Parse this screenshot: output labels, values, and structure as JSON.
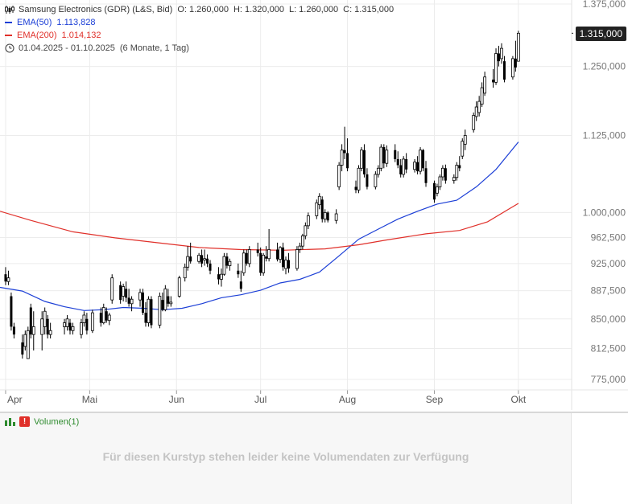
{
  "legend": {
    "instrument": "Samsung Electronics (GDR) (L&S, Bid)",
    "open": "O: 1.260,000",
    "high": "H: 1.320,000",
    "low": "L: 1.260,000",
    "close": "C: 1.315,000",
    "ema50_label": "EMA(50)",
    "ema50_value": "1.113,828",
    "ema200_label": "EMA(200)",
    "ema200_value": "1.014,132",
    "date_range": "01.04.2025 - 01.10.2025",
    "period": "(6 Monate, 1 Tag)"
  },
  "price_tag": "1.315,000",
  "volume": {
    "title": "Volumen(1)",
    "warning_glyph": "!",
    "message": "Für diesen Kurstyp stehen leider keine Volumendaten zur Verfügung"
  },
  "colors": {
    "ema50": "#1c3fd6",
    "ema200": "#e0302a",
    "candle": "#000000",
    "grid": "#ececec"
  },
  "chart_data": {
    "type": "candlestick",
    "title": "Samsung Electronics (GDR) (L&S, Bid)",
    "y_ticks": [
      1375,
      1250,
      1125,
      1000,
      962.5,
      925,
      887.5,
      850,
      812.5,
      775
    ],
    "y_tick_labels": [
      "1.375,000",
      "1.250,000",
      "1.125,000",
      "1.000,000",
      "962,500",
      "925,000",
      "887,500",
      "850,000",
      "812,500",
      "775,000"
    ],
    "y_scale": "log",
    "x_ticks": [
      "2025-04-01",
      "2025-05-01",
      "2025-06-01",
      "2025-07-01",
      "2025-08-01",
      "2025-09-01",
      "2025-10-01"
    ],
    "x_tick_labels": [
      "Apr",
      "Mai",
      "Jun",
      "Jul",
      "Aug",
      "Sep",
      "Okt"
    ],
    "x_range": [
      "2025-03-30",
      "2025-10-20"
    ],
    "last_close": 1315,
    "candles": [
      [
        "2025-04-01",
        910,
        920,
        895,
        900
      ],
      [
        "2025-04-02",
        900,
        915,
        895,
        905
      ],
      [
        "2025-04-03",
        880,
        885,
        835,
        840
      ],
      [
        "2025-04-04",
        840,
        845,
        825,
        830
      ],
      [
        "2025-04-07",
        820,
        830,
        800,
        805
      ],
      [
        "2025-04-08",
        815,
        835,
        810,
        830
      ],
      [
        "2025-04-09",
        800,
        840,
        800,
        835
      ],
      [
        "2025-04-10",
        865,
        870,
        825,
        830
      ],
      [
        "2025-04-11",
        830,
        860,
        810,
        840
      ],
      [
        "2025-04-14",
        830,
        860,
        810,
        850
      ],
      [
        "2025-04-15",
        840,
        865,
        830,
        860
      ],
      [
        "2025-04-16",
        850,
        855,
        825,
        830
      ],
      [
        "2025-04-17",
        830,
        845,
        825,
        835
      ],
      [
        "2025-04-22",
        840,
        850,
        830,
        845
      ],
      [
        "2025-04-23",
        840,
        855,
        835,
        850
      ],
      [
        "2025-04-24",
        845,
        850,
        830,
        835
      ],
      [
        "2025-04-25",
        835,
        845,
        830,
        840
      ],
      [
        "2025-04-28",
        830,
        850,
        825,
        845
      ],
      [
        "2025-04-29",
        845,
        860,
        840,
        855
      ],
      [
        "2025-04-30",
        850,
        858,
        830,
        835
      ],
      [
        "2025-05-02",
        835,
        862,
        832,
        858
      ],
      [
        "2025-05-05",
        858,
        865,
        840,
        845
      ],
      [
        "2025-05-06",
        845,
        870,
        843,
        865
      ],
      [
        "2025-05-07",
        860,
        865,
        845,
        848
      ],
      [
        "2025-05-08",
        848,
        858,
        842,
        855
      ],
      [
        "2025-05-09",
        875,
        910,
        870,
        905
      ],
      [
        "2025-05-12",
        895,
        900,
        870,
        875
      ],
      [
        "2025-05-13",
        880,
        897,
        873,
        893
      ],
      [
        "2025-05-14",
        890,
        900,
        872,
        878
      ],
      [
        "2025-05-15",
        878,
        890,
        866,
        870
      ],
      [
        "2025-05-16",
        870,
        880,
        860,
        876
      ],
      [
        "2025-05-19",
        875,
        890,
        866,
        885
      ],
      [
        "2025-05-20",
        885,
        890,
        855,
        858
      ],
      [
        "2025-05-21",
        858,
        872,
        840,
        845
      ],
      [
        "2025-05-22",
        845,
        880,
        840,
        876
      ],
      [
        "2025-05-23",
        876,
        880,
        838,
        842
      ],
      [
        "2025-05-26",
        842,
        885,
        838,
        880
      ],
      [
        "2025-05-27",
        875,
        885,
        860,
        862
      ],
      [
        "2025-05-28",
        862,
        895,
        860,
        890
      ],
      [
        "2025-05-29",
        880,
        890,
        866,
        870
      ],
      [
        "2025-05-30",
        870,
        880,
        866,
        872
      ],
      [
        "2025-06-02",
        880,
        908,
        878,
        905
      ],
      [
        "2025-06-04",
        905,
        925,
        900,
        920
      ],
      [
        "2025-06-05",
        920,
        950,
        915,
        935
      ],
      [
        "2025-06-06",
        935,
        955,
        925,
        928
      ],
      [
        "2025-06-09",
        928,
        940,
        925,
        937
      ],
      [
        "2025-06-10",
        937,
        945,
        920,
        925
      ],
      [
        "2025-06-11",
        930,
        945,
        922,
        932
      ],
      [
        "2025-06-12",
        932,
        938,
        920,
        925
      ],
      [
        "2025-06-13",
        925,
        930,
        910,
        915
      ],
      [
        "2025-06-16",
        910,
        920,
        896,
        903
      ],
      [
        "2025-06-17",
        903,
        918,
        893,
        910
      ],
      [
        "2025-06-18",
        910,
        940,
        908,
        935
      ],
      [
        "2025-06-19",
        935,
        940,
        918,
        922
      ],
      [
        "2025-06-20",
        922,
        932,
        915,
        928
      ],
      [
        "2025-06-23",
        915,
        925,
        905,
        910
      ],
      [
        "2025-06-24",
        900,
        915,
        886,
        890
      ],
      [
        "2025-06-25",
        912,
        945,
        908,
        940
      ],
      [
        "2025-06-26",
        940,
        945,
        922,
        925
      ],
      [
        "2025-06-27",
        925,
        950,
        920,
        945
      ],
      [
        "2025-06-30",
        945,
        955,
        935,
        940
      ],
      [
        "2025-07-01",
        940,
        948,
        908,
        912
      ],
      [
        "2025-07-02",
        912,
        940,
        908,
        937
      ],
      [
        "2025-07-03",
        935,
        950,
        928,
        932
      ],
      [
        "2025-07-04",
        932,
        975,
        928,
        945
      ],
      [
        "2025-07-07",
        945,
        955,
        928,
        931
      ],
      [
        "2025-07-08",
        931,
        950,
        926,
        948
      ],
      [
        "2025-07-09",
        948,
        955,
        915,
        920
      ],
      [
        "2025-07-10",
        918,
        935,
        910,
        930
      ],
      [
        "2025-07-11",
        930,
        940,
        912,
        918
      ],
      [
        "2025-07-14",
        918,
        950,
        915,
        945
      ],
      [
        "2025-07-15",
        945,
        955,
        940,
        950
      ],
      [
        "2025-07-16",
        950,
        968,
        945,
        965
      ],
      [
        "2025-07-17",
        965,
        985,
        960,
        980
      ],
      [
        "2025-07-18",
        980,
        1000,
        975,
        995
      ],
      [
        "2025-07-21",
        995,
        1020,
        990,
        1015
      ],
      [
        "2025-07-22",
        1012,
        1030,
        1005,
        1025
      ],
      [
        "2025-07-23",
        1020,
        1025,
        985,
        990
      ],
      [
        "2025-07-24",
        990,
        1005,
        985,
        1000
      ],
      [
        "2025-07-25",
        1000,
        1002,
        985,
        988
      ],
      [
        "2025-07-28",
        988,
        1005,
        983,
        998
      ],
      [
        "2025-07-29",
        1040,
        1080,
        1035,
        1075
      ],
      [
        "2025-07-30",
        1075,
        1110,
        1065,
        1100
      ],
      [
        "2025-07-31",
        1100,
        1140,
        1085,
        1095
      ],
      [
        "2025-08-01",
        1095,
        1120,
        1065,
        1070
      ],
      [
        "2025-08-04",
        1040,
        1050,
        1030,
        1035
      ],
      [
        "2025-08-05",
        1035,
        1075,
        1030,
        1070
      ],
      [
        "2025-08-06",
        1070,
        1105,
        1065,
        1100
      ],
      [
        "2025-08-07",
        1100,
        1110,
        1055,
        1060
      ],
      [
        "2025-08-08",
        1060,
        1070,
        1036,
        1040
      ],
      [
        "2025-08-11",
        1040,
        1065,
        1036,
        1060
      ],
      [
        "2025-08-12",
        1060,
        1075,
        1055,
        1070
      ],
      [
        "2025-08-13",
        1070,
        1110,
        1065,
        1105
      ],
      [
        "2025-08-14",
        1105,
        1110,
        1070,
        1078
      ],
      [
        "2025-08-15",
        1078,
        1108,
        1072,
        1100
      ],
      [
        "2025-08-18",
        1100,
        1110,
        1080,
        1085
      ],
      [
        "2025-08-19",
        1085,
        1098,
        1070,
        1075
      ],
      [
        "2025-08-20",
        1075,
        1085,
        1055,
        1060
      ],
      [
        "2025-08-21",
        1060,
        1090,
        1055,
        1085
      ],
      [
        "2025-08-22",
        1085,
        1095,
        1062,
        1068
      ],
      [
        "2025-08-25",
        1068,
        1085,
        1063,
        1080
      ],
      [
        "2025-08-26",
        1080,
        1090,
        1060,
        1065
      ],
      [
        "2025-08-27",
        1065,
        1105,
        1060,
        1100
      ],
      [
        "2025-08-28",
        1100,
        1102,
        1065,
        1070
      ],
      [
        "2025-08-29",
        1070,
        1082,
        1040,
        1046
      ],
      [
        "2025-09-01",
        1046,
        1050,
        1015,
        1020
      ],
      [
        "2025-09-02",
        1030,
        1045,
        1025,
        1040
      ],
      [
        "2025-09-03",
        1040,
        1060,
        1035,
        1056
      ],
      [
        "2025-09-04",
        1056,
        1075,
        1050,
        1070
      ],
      [
        "2025-09-05",
        1070,
        1076,
        1045,
        1050
      ],
      [
        "2025-09-08",
        1050,
        1060,
        1045,
        1055
      ],
      [
        "2025-09-09",
        1055,
        1080,
        1050,
        1075
      ],
      [
        "2025-09-10",
        1075,
        1090,
        1065,
        1070
      ],
      [
        "2025-09-11",
        1090,
        1120,
        1085,
        1115
      ],
      [
        "2025-09-12",
        1110,
        1135,
        1100,
        1125
      ],
      [
        "2025-09-15",
        1135,
        1165,
        1130,
        1160
      ],
      [
        "2025-09-16",
        1158,
        1185,
        1150,
        1175
      ],
      [
        "2025-09-17",
        1165,
        1195,
        1158,
        1185
      ],
      [
        "2025-09-18",
        1180,
        1220,
        1175,
        1210
      ],
      [
        "2025-09-19",
        1200,
        1240,
        1195,
        1230
      ],
      [
        "2025-09-22",
        1225,
        1245,
        1210,
        1220
      ],
      [
        "2025-09-23",
        1220,
        1285,
        1215,
        1275
      ],
      [
        "2025-09-24",
        1275,
        1290,
        1250,
        1260
      ],
      [
        "2025-09-25",
        1265,
        1295,
        1255,
        1285
      ],
      [
        "2025-09-26",
        1260,
        1270,
        1220,
        1225
      ],
      [
        "2025-09-29",
        1230,
        1270,
        1225,
        1265
      ],
      [
        "2025-09-30",
        1265,
        1300,
        1240,
        1248
      ],
      [
        "2025-10-01",
        1260,
        1320,
        1260,
        1315
      ]
    ],
    "series": [
      {
        "name": "EMA(50)",
        "color": "#1c3fd6",
        "points": [
          [
            "2025-03-30",
            892
          ],
          [
            "2025-04-07",
            887
          ],
          [
            "2025-04-15",
            873
          ],
          [
            "2025-04-22",
            866
          ],
          [
            "2025-04-29",
            861
          ],
          [
            "2025-05-06",
            862
          ],
          [
            "2025-05-13",
            865
          ],
          [
            "2025-05-20",
            864
          ],
          [
            "2025-05-27",
            862
          ],
          [
            "2025-06-03",
            864
          ],
          [
            "2025-06-10",
            870
          ],
          [
            "2025-06-17",
            878
          ],
          [
            "2025-06-24",
            882
          ],
          [
            "2025-07-01",
            888
          ],
          [
            "2025-07-08",
            898
          ],
          [
            "2025-07-15",
            903
          ],
          [
            "2025-07-22",
            913
          ],
          [
            "2025-07-29",
            936
          ],
          [
            "2025-08-05",
            960
          ],
          [
            "2025-08-12",
            975
          ],
          [
            "2025-08-19",
            990
          ],
          [
            "2025-08-26",
            1002
          ],
          [
            "2025-09-02",
            1013
          ],
          [
            "2025-09-09",
            1019
          ],
          [
            "2025-09-16",
            1040
          ],
          [
            "2025-09-23",
            1068
          ],
          [
            "2025-10-01",
            1113.828
          ]
        ]
      },
      {
        "name": "EMA(200)",
        "color": "#e0302a",
        "points": [
          [
            "2025-03-30",
            1002
          ],
          [
            "2025-04-10",
            988
          ],
          [
            "2025-04-25",
            971
          ],
          [
            "2025-05-10",
            962
          ],
          [
            "2025-05-25",
            955
          ],
          [
            "2025-06-09",
            948
          ],
          [
            "2025-06-24",
            945
          ],
          [
            "2025-07-09",
            944
          ],
          [
            "2025-07-24",
            946
          ],
          [
            "2025-08-05",
            952
          ],
          [
            "2025-08-15",
            959
          ],
          [
            "2025-08-29",
            968
          ],
          [
            "2025-09-10",
            973
          ],
          [
            "2025-09-20",
            986
          ],
          [
            "2025-10-01",
            1014.132
          ]
        ]
      }
    ],
    "grid": true,
    "legend_position": "top-left"
  }
}
